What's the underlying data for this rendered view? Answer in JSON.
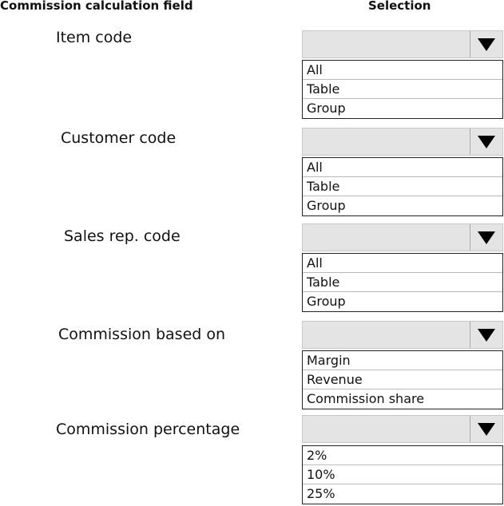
{
  "headers": {
    "field": "Commission calculation field",
    "selection": "Selection"
  },
  "fields": [
    {
      "label": "Item code",
      "selected": "",
      "options": [
        "All",
        "Table",
        "Group"
      ]
    },
    {
      "label": "Customer code",
      "selected": "",
      "options": [
        "All",
        "Table",
        "Group"
      ]
    },
    {
      "label": "Sales rep. code",
      "selected": "",
      "options": [
        "All",
        "Table",
        "Group"
      ]
    },
    {
      "label": "Commission based on",
      "selected": "",
      "options": [
        "Margin",
        "Revenue",
        "Commission share"
      ]
    },
    {
      "label": "Commission percentage",
      "selected": "",
      "options": [
        "2%",
        "10%",
        "25%"
      ]
    }
  ],
  "icons": {
    "dropdown": "triangle-down-icon"
  }
}
